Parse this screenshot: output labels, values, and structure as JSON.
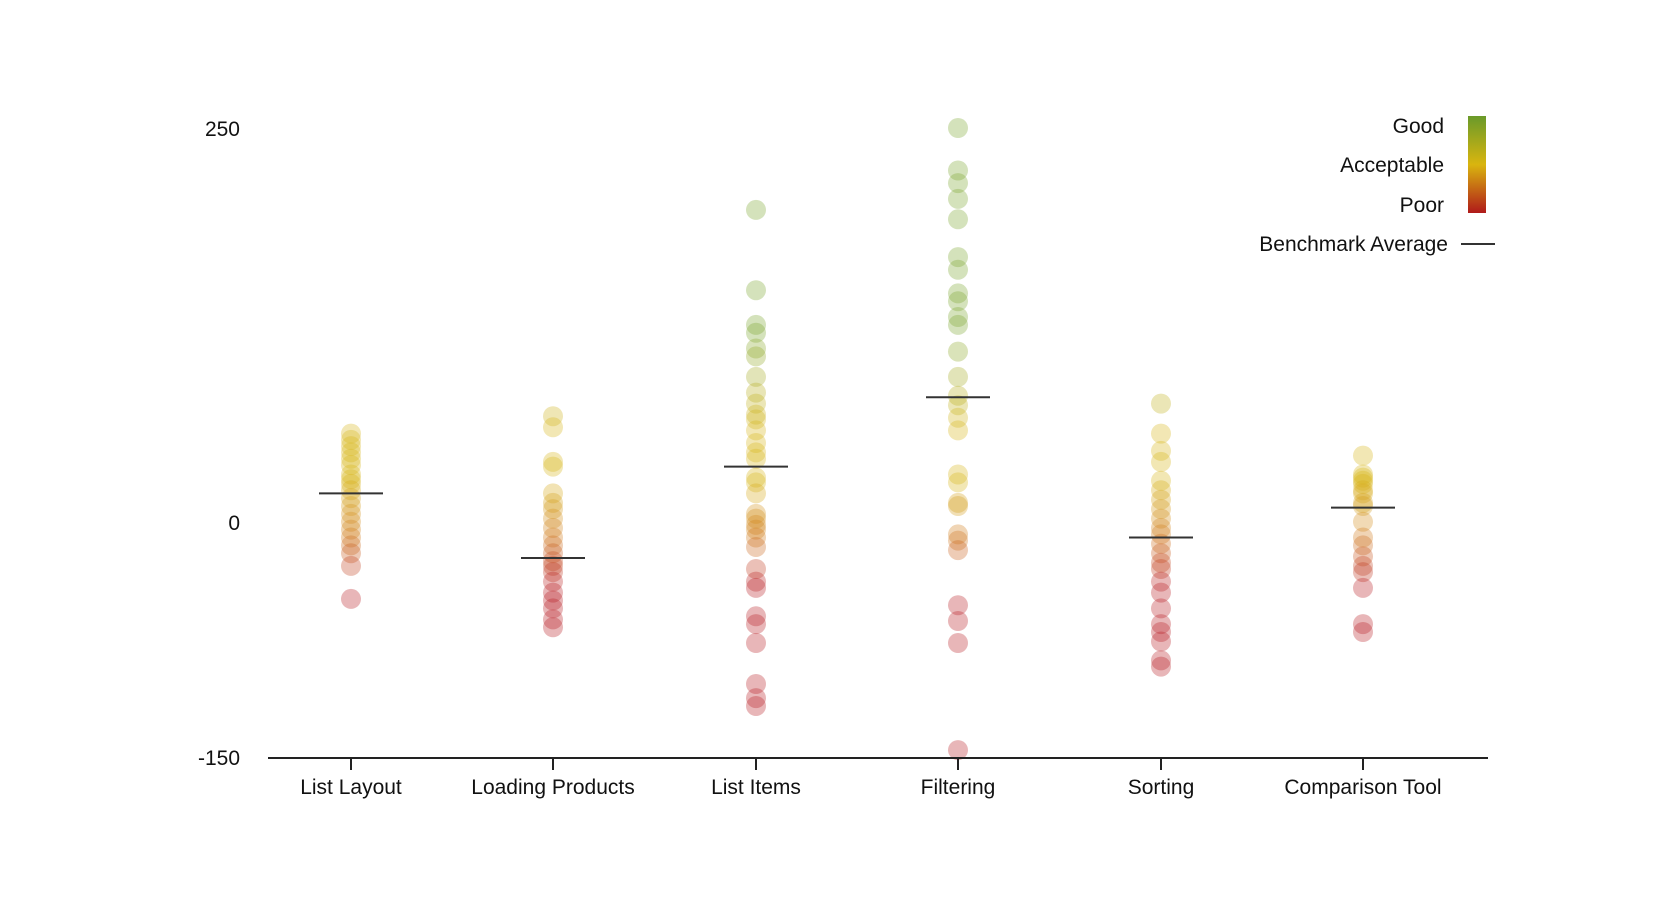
{
  "chart_data": {
    "type": "scatter",
    "title": "",
    "xlabel": "",
    "ylabel": "",
    "ylim": [
      -150,
      250
    ],
    "yticks": [
      250,
      0,
      -150
    ],
    "yticks_labels": [
      "250",
      "0",
      "-150"
    ],
    "categories": [
      "List Layout",
      "Loading Products",
      "List Items",
      "Filtering",
      "Sorting",
      "Comparison Tool"
    ],
    "benchmark_averages": [
      18,
      -23,
      35,
      79,
      -10,
      9
    ],
    "series": [
      {
        "name": "List Layout",
        "values": [
          56,
          52,
          48,
          44,
          40,
          36,
          30,
          27,
          24,
          20,
          15,
          10,
          5,
          0,
          -5,
          -10,
          -15,
          -20,
          -28,
          -49
        ]
      },
      {
        "name": "Loading Products",
        "values": [
          67,
          60,
          38,
          35,
          18,
          12,
          8,
          2,
          -4,
          -10,
          -15,
          -20,
          -25,
          -28,
          -32,
          -38,
          -45,
          -50,
          -55,
          -62,
          -67
        ]
      },
      {
        "name": "List Items",
        "values": [
          198,
          147,
          125,
          120,
          110,
          105,
          92,
          82,
          75,
          68,
          65,
          58,
          50,
          44,
          40,
          28,
          25,
          18,
          5,
          2,
          -2,
          -5,
          -10,
          -16,
          -30,
          -38,
          -42,
          -60,
          -65,
          -77,
          -103,
          -112,
          -117
        ]
      },
      {
        "name": "Filtering",
        "values": [
          250,
          223,
          215,
          205,
          192,
          168,
          160,
          145,
          140,
          130,
          125,
          108,
          92,
          80,
          74,
          66,
          58,
          30,
          25,
          12,
          10,
          -8,
          -12,
          -18,
          -53,
          -63,
          -77,
          -145
        ]
      },
      {
        "name": "Sorting",
        "values": [
          75,
          56,
          45,
          38,
          26,
          20,
          14,
          8,
          2,
          -4,
          -8,
          -14,
          -20,
          -26,
          -30,
          -38,
          -45,
          -55,
          -65,
          -70,
          -76,
          -88,
          -92
        ]
      },
      {
        "name": "Comparison Tool",
        "values": [
          42,
          30,
          28,
          26,
          24,
          20,
          18,
          12,
          10,
          0,
          -10,
          -15,
          -22,
          -28,
          -32,
          -42,
          -65,
          -70
        ]
      }
    ],
    "legend": {
      "position": "top-right",
      "scale_labels": [
        "Good",
        "Acceptable",
        "Poor"
      ],
      "average_label": "Benchmark Average",
      "gradient": [
        "#6a9a2a",
        "#d9b50f",
        "#b01a1a"
      ]
    },
    "colors": {
      "good": "#7aa52a",
      "acceptable": "#d8b416",
      "mid": "#cf7a1a",
      "poor": "#b81c22",
      "axis": "#222222"
    }
  }
}
